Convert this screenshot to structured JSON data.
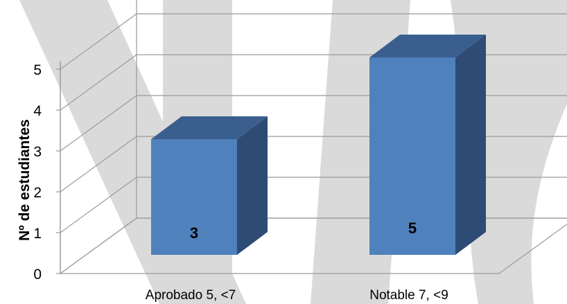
{
  "chart_data": {
    "type": "bar",
    "title": "",
    "xlabel": "",
    "ylabel": "Nº de estudiantes",
    "categories": [
      "Aprobado   5, <7",
      "Notable   7, <9"
    ],
    "values": [
      3,
      5
    ],
    "data_labels": [
      "3",
      "5"
    ],
    "y_ticks": [
      "0",
      "1",
      "2",
      "3",
      "4",
      "5"
    ],
    "ylim": [
      0,
      5.5
    ],
    "grid": true,
    "style": "3d-column",
    "colors": {
      "bar_front": "#4f81bd",
      "bar_top": "#3a5f8f",
      "bar_side": "#2e4c73",
      "watermark": "#dadada",
      "gridline": "#9a9a9a"
    }
  }
}
